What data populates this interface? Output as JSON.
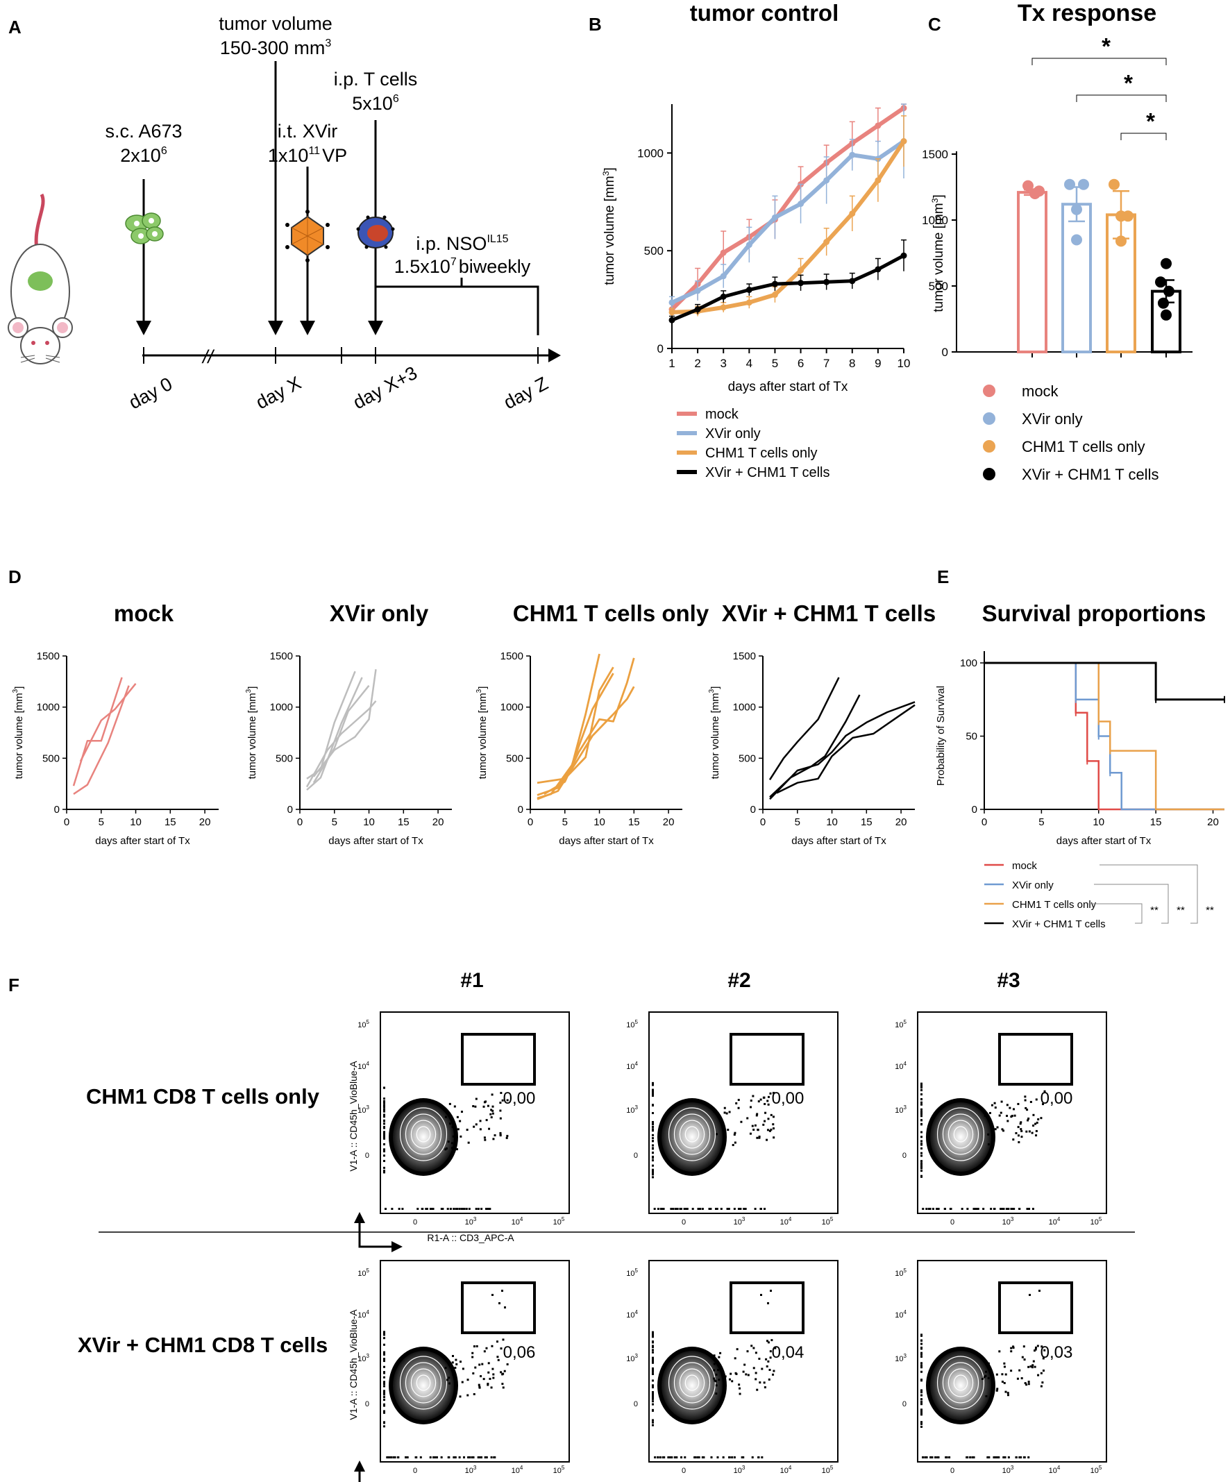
{
  "panel_labels": [
    "A",
    "B",
    "C",
    "D",
    "E",
    "F"
  ],
  "colors": {
    "mock": "#e8837e",
    "xvir_only": "#93b2d9",
    "chm1_only": "#eba452",
    "combo": "#000000",
    "grey_d": "#bdbdbd",
    "orange_d": "#eba040",
    "red_e": "#e04b48",
    "blue_e": "#6f9ad1",
    "orange_e": "#e9a14a"
  },
  "timeline": {
    "events": [
      {
        "l1": "s.c. A673",
        "l2": "2x10",
        "sup": "6"
      },
      {
        "l1": "tumor volume",
        "l2": "150-300 mm",
        "sup": "3"
      },
      {
        "l1": "i.t. XVir",
        "l2": "1x10",
        "sup": "11",
        "tail": "VP"
      },
      {
        "l1": "i.p. T cells",
        "l2": "5x10",
        "sup": "6"
      },
      {
        "l1": "i.p. NSO",
        "sup1": "IL15",
        "l2": "1.5x10",
        "sup2": "7",
        "tail": "biweekly"
      }
    ],
    "days": [
      "day 0",
      "day X",
      "day X+3",
      "day Z"
    ],
    "break_mark": "//"
  },
  "chart_data": [
    {
      "id": "B",
      "type": "line",
      "title": "tumor control",
      "xlabel": "days after start of Tx",
      "ylabel": "tumor volume [mm3]",
      "x": [
        1,
        2,
        3,
        4,
        5,
        6,
        7,
        8,
        9,
        10
      ],
      "xlim": [
        1,
        10
      ],
      "ylim": [
        0,
        1250
      ],
      "yticks": [
        0,
        500,
        1000
      ],
      "series": [
        {
          "name": "mock",
          "key": "mock",
          "values": [
            200,
            330,
            490,
            570,
            660,
            840,
            950,
            1050,
            1140,
            1230
          ],
          "err": [
            40,
            80,
            110,
            90,
            100,
            90,
            90,
            110,
            90,
            20
          ]
        },
        {
          "name": "XVir only",
          "key": "xvir_only",
          "values": [
            235,
            295,
            370,
            530,
            670,
            740,
            860,
            990,
            970,
            1060
          ],
          "err": [
            30,
            50,
            60,
            90,
            110,
            100,
            120,
            80,
            90,
            190
          ]
        },
        {
          "name": "CHM1 T cells only",
          "key": "chm1_only",
          "values": [
            185,
            190,
            210,
            235,
            275,
            400,
            545,
            690,
            860,
            1060
          ],
          "err": [
            20,
            25,
            25,
            30,
            40,
            60,
            70,
            90,
            110,
            130
          ]
        },
        {
          "name": "XVir + CHM1 T cells",
          "key": "combo",
          "values": [
            145,
            200,
            265,
            300,
            330,
            335,
            340,
            345,
            405,
            475
          ],
          "err": [
            20,
            25,
            30,
            30,
            35,
            40,
            40,
            40,
            55,
            80
          ]
        }
      ]
    },
    {
      "id": "C",
      "type": "bar",
      "title": "Tx response",
      "ylabel": "tumor volume [mm3]",
      "ylim": [
        0,
        1550
      ],
      "yticks": [
        0,
        500,
        1000,
        1500
      ],
      "significance": "*",
      "bars": [
        {
          "name": "mock",
          "key": "mock",
          "value": 1210,
          "sem": 20,
          "points": [
            1260,
            1200,
            1220
          ]
        },
        {
          "name": "XVir only",
          "key": "xvir_only",
          "value": 1120,
          "sem": 130,
          "points": [
            1270,
            1270,
            1080,
            850
          ]
        },
        {
          "name": "CHM1 T cells only",
          "key": "chm1_only",
          "value": 1040,
          "sem": 180,
          "points": [
            1270,
            1030,
            1030,
            840
          ]
        },
        {
          "name": "XVir + CHM1 T cells",
          "key": "combo",
          "value": 460,
          "sem": 85,
          "points": [
            670,
            530,
            460,
            370,
            280
          ]
        }
      ]
    },
    {
      "id": "D",
      "type": "line",
      "xlabel": "days after start of Tx",
      "ylabel": "tumor volume [mm3]",
      "xlim": [
        0,
        22
      ],
      "ylim": [
        0,
        1500
      ],
      "xticks": [
        0,
        5,
        10,
        15,
        20
      ],
      "yticks": [
        0,
        500,
        1000,
        1500
      ],
      "panels": [
        {
          "title": "mock",
          "color_key": "mock",
          "stroke": 2.5,
          "lines": [
            [
              [
                1,
                230
              ],
              [
                3,
                670
              ],
              [
                5,
                670
              ],
              [
                8,
                1290
              ]
            ],
            [
              [
                1,
                150
              ],
              [
                3,
                240
              ],
              [
                6,
                650
              ],
              [
                9,
                1210
              ]
            ],
            [
              [
                2,
                470
              ],
              [
                5,
                870
              ],
              [
                7,
                980
              ],
              [
                10,
                1230
              ]
            ]
          ]
        },
        {
          "title": "XVir only",
          "color_key": "grey_d",
          "stroke": 2.5,
          "lines": [
            [
              [
                1,
                300
              ],
              [
                3,
                390
              ],
              [
                5,
                850
              ],
              [
                8,
                1350
              ]
            ],
            [
              [
                1,
                190
              ],
              [
                3,
                310
              ],
              [
                6,
                840
              ],
              [
                9,
                1290
              ]
            ],
            [
              [
                2,
                260
              ],
              [
                5,
                600
              ],
              [
                7,
                960
              ],
              [
                10,
                1210
              ]
            ],
            [
              [
                1,
                220
              ],
              [
                4,
                580
              ],
              [
                6,
                740
              ],
              [
                10,
                980
              ],
              [
                11,
                1060
              ]
            ],
            [
              [
                2,
                320
              ],
              [
                5,
                580
              ],
              [
                8,
                710
              ],
              [
                10,
                880
              ],
              [
                11,
                1370
              ]
            ]
          ]
        },
        {
          "title": "CHM1 T cells only",
          "color_key": "orange_d",
          "stroke": 2.8,
          "lines": [
            [
              [
                1,
                140
              ],
              [
                4,
                210
              ],
              [
                6,
                420
              ],
              [
                8,
                930
              ],
              [
                10,
                1520
              ]
            ],
            [
              [
                1,
                110
              ],
              [
                3,
                150
              ],
              [
                6,
                430
              ],
              [
                9,
                980
              ],
              [
                12,
                1330
              ]
            ],
            [
              [
                1,
                260
              ],
              [
                3,
                280
              ],
              [
                5,
                300
              ],
              [
                8,
                510
              ],
              [
                10,
                1160
              ],
              [
                12,
                1390
              ]
            ],
            [
              [
                2,
                150
              ],
              [
                5,
                270
              ],
              [
                7,
                560
              ],
              [
                10,
                880
              ],
              [
                12,
                860
              ],
              [
                14,
                1240
              ],
              [
                15,
                1480
              ]
            ],
            [
              [
                1,
                100
              ],
              [
                4,
                180
              ],
              [
                7,
                500
              ],
              [
                9,
                720
              ],
              [
                12,
                930
              ],
              [
                14,
                1080
              ],
              [
                15,
                1200
              ]
            ]
          ]
        },
        {
          "title": "XVir + CHM1 T cells",
          "color_key": "combo",
          "stroke": 2.5,
          "lines": [
            [
              [
                1,
                290
              ],
              [
                3,
                500
              ],
              [
                5,
                660
              ],
              [
                8,
                880
              ],
              [
                11,
                1290
              ]
            ],
            [
              [
                1,
                120
              ],
              [
                4,
                310
              ],
              [
                7,
                420
              ],
              [
                9,
                520
              ],
              [
                12,
                860
              ],
              [
                14,
                1120
              ]
            ],
            [
              [
                1,
                100
              ],
              [
                5,
                380
              ],
              [
                8,
                440
              ],
              [
                10,
                560
              ],
              [
                12,
                720
              ],
              [
                15,
                850
              ],
              [
                18,
                950
              ],
              [
                22,
                1050
              ]
            ],
            [
              [
                2,
                160
              ],
              [
                5,
                260
              ],
              [
                8,
                300
              ],
              [
                10,
                520
              ],
              [
                13,
                700
              ],
              [
                16,
                740
              ],
              [
                19,
                880
              ],
              [
                22,
                1020
              ]
            ]
          ]
        }
      ]
    },
    {
      "id": "E",
      "type": "line",
      "title": "Survival proportions",
      "xlabel": "days after start of Tx",
      "ylabel": "Probability of Survival",
      "xlim": [
        0,
        21
      ],
      "ylim": [
        0,
        100
      ],
      "xticks": [
        0,
        5,
        10,
        15,
        20
      ],
      "yticks": [
        0,
        50,
        100
      ],
      "series": [
        {
          "name": "mock",
          "color_key": "red_e",
          "steps": [
            [
              0,
              100
            ],
            [
              8,
              66
            ],
            [
              9,
              33
            ],
            [
              10,
              0
            ]
          ]
        },
        {
          "name": "XVir only",
          "color_key": "blue_e",
          "steps": [
            [
              0,
              100
            ],
            [
              8,
              75
            ],
            [
              10,
              50
            ],
            [
              11,
              25
            ],
            [
              12,
              0
            ]
          ]
        },
        {
          "name": "CHM1 T cells only",
          "color_key": "orange_e",
          "steps": [
            [
              0,
              100
            ],
            [
              10,
              60
            ],
            [
              11,
              40
            ],
            [
              15,
              0
            ]
          ]
        },
        {
          "name": "XVir + CHM1 T cells",
          "color_key": "combo",
          "steps": [
            [
              0,
              100
            ],
            [
              15,
              75
            ],
            [
              21,
              75
            ]
          ]
        }
      ],
      "significance": [
        "**",
        "**",
        "**"
      ]
    }
  ],
  "flow": {
    "columns": [
      "#1",
      "#2",
      "#3"
    ],
    "rows": [
      {
        "label": "CHM1 CD8 T cells only",
        "values": [
          "0,00",
          "0,00",
          "0,00"
        ]
      },
      {
        "label": "XVir + CHM1 CD8 T cells",
        "values": [
          "0,06",
          "0,04",
          "0,03"
        ]
      }
    ],
    "y_axis_label": "V1-A :: CD45h_VioBlue-A",
    "x_axis_label": "R1-A :: CD3_APC-A",
    "x_ticks": [
      "0",
      "10",
      "10",
      "10"
    ],
    "x_tick_exp": [
      "",
      "3",
      "4",
      "5"
    ],
    "y_ticks": [
      "0",
      "10",
      "10",
      "10"
    ],
    "y_tick_exp": [
      "",
      "3",
      "4",
      "5"
    ]
  }
}
